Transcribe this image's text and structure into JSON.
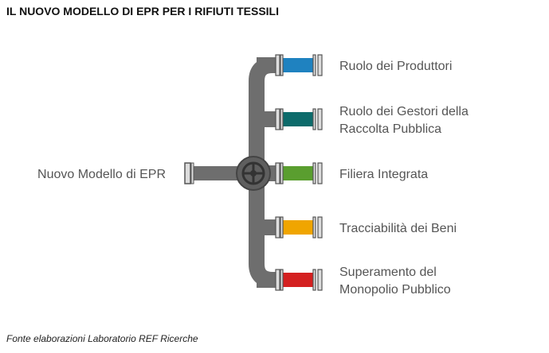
{
  "header": {
    "title": "IL NUOVO MODELLO DI EPR PER I RIFIUTI TESSILI"
  },
  "root": {
    "label": "Nuovo Modello di EPR"
  },
  "branches": [
    {
      "lines": [
        "Ruolo dei Produttori"
      ]
    },
    {
      "lines": [
        "Ruolo dei Gestori della",
        "Raccolta Pubblica"
      ]
    },
    {
      "lines": [
        "Filiera Integrata"
      ]
    },
    {
      "lines": [
        "Tracciabilità dei Beni"
      ]
    },
    {
      "lines": [
        "Superamento del",
        "Monopolio Pubblico"
      ]
    }
  ],
  "footer": {
    "source": "Fonte elaborazioni Laboratorio REF Ricerche"
  }
}
